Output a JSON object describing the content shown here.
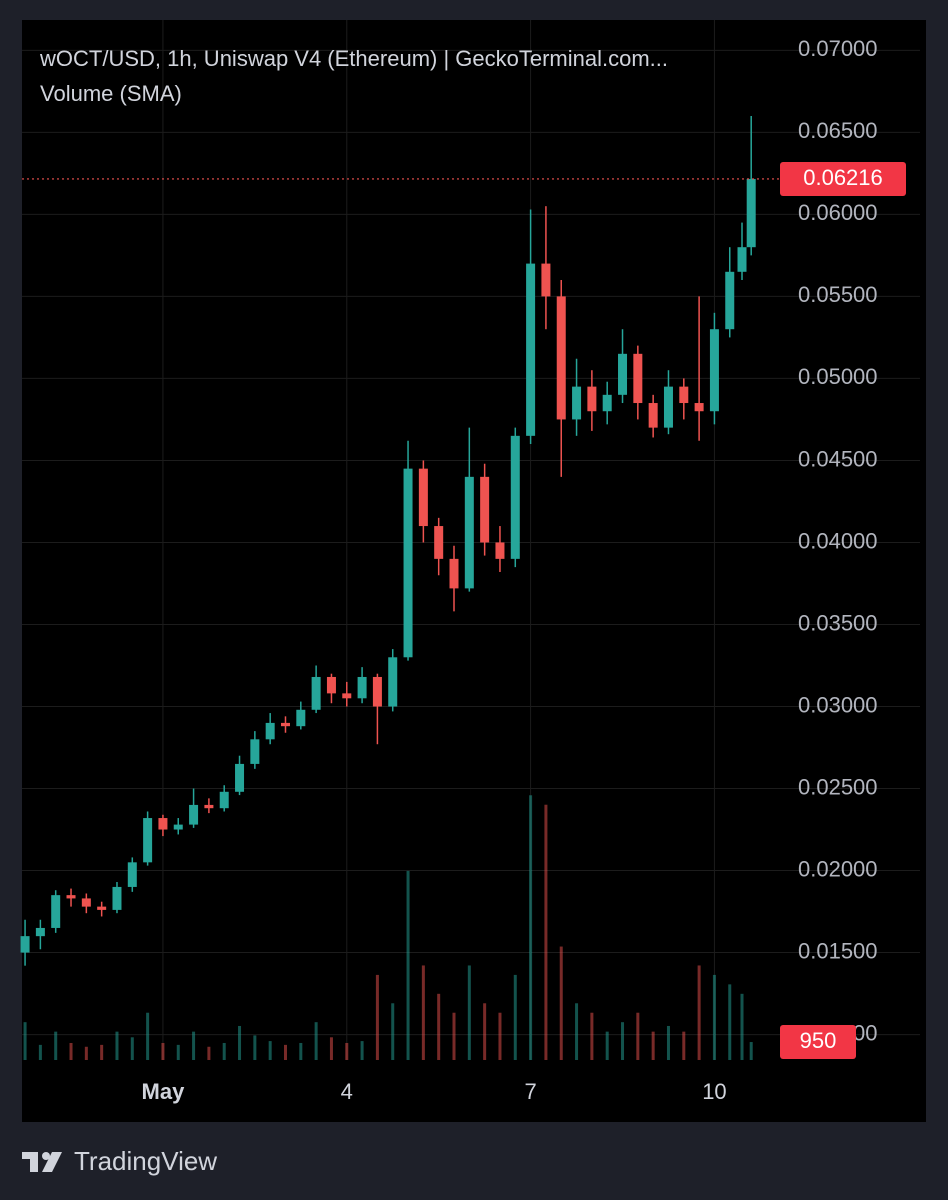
{
  "chart_data": {
    "type": "candlestick",
    "title": "wOCT/USD, 1h, Uniswap V4 (Ethereum) | GeckoTerminal.com...",
    "subtitle": "Volume (SMA)",
    "up_color": "#26a69a",
    "down_color": "#ef5350",
    "grid": true,
    "xlim": [
      -2.3,
      10.07
    ],
    "xticks": [
      {
        "value": 0,
        "label": "May"
      },
      {
        "value": 3,
        "label": "4"
      },
      {
        "value": 6,
        "label": "7"
      },
      {
        "value": 9,
        "label": "10"
      }
    ],
    "ylim": [
      0.00845,
      0.07185
    ],
    "yticks": [
      {
        "value": 0.07,
        "label": "0.07000"
      },
      {
        "value": 0.065,
        "label": "0.06500"
      },
      {
        "value": 0.06,
        "label": "0.06000"
      },
      {
        "value": 0.055,
        "label": "0.05500"
      },
      {
        "value": 0.05,
        "label": "0.05000"
      },
      {
        "value": 0.045,
        "label": "0.04500"
      },
      {
        "value": 0.04,
        "label": "0.04000"
      },
      {
        "value": 0.035,
        "label": "0.03500"
      },
      {
        "value": 0.03,
        "label": "0.03000"
      },
      {
        "value": 0.025,
        "label": "0.02500"
      },
      {
        "value": 0.02,
        "label": "0.02000"
      },
      {
        "value": 0.015,
        "label": "0.01500"
      },
      {
        "value": 0.01,
        "label": "0.01000"
      }
    ],
    "y2lim": [
      0,
      55000
    ],
    "last_price": 0.06216,
    "x": [
      -2.25,
      -2,
      -1.75,
      -1.5,
      -1.25,
      -1,
      -0.75,
      -0.5,
      -0.25,
      0,
      0.25,
      0.5,
      0.75,
      1,
      1.25,
      1.5,
      1.75,
      2,
      2.25,
      2.5,
      2.75,
      3,
      3.25,
      3.5,
      3.75,
      4,
      4.25,
      4.5,
      4.75,
      5,
      5.25,
      5.5,
      5.75,
      6,
      6.25,
      6.5,
      6.75,
      7,
      7.25,
      7.5,
      7.75,
      8,
      8.25,
      8.5,
      8.75,
      9,
      9.25,
      9.45,
      9.6
    ],
    "open": [
      0.015,
      0.016,
      0.0165,
      0.0185,
      0.0183,
      0.0178,
      0.0176,
      0.019,
      0.0205,
      0.0232,
      0.0225,
      0.0228,
      0.024,
      0.0238,
      0.0248,
      0.0265,
      0.028,
      0.029,
      0.0288,
      0.0298,
      0.0318,
      0.0308,
      0.0305,
      0.0318,
      0.03,
      0.033,
      0.0445,
      0.041,
      0.039,
      0.0372,
      0.044,
      0.04,
      0.039,
      0.0465,
      0.057,
      0.055,
      0.0475,
      0.0495,
      0.048,
      0.049,
      0.0515,
      0.0485,
      0.047,
      0.0495,
      0.0485,
      0.048,
      0.053,
      0.0565,
      0.058
    ],
    "high": [
      0.017,
      0.017,
      0.0188,
      0.0189,
      0.0186,
      0.0181,
      0.0193,
      0.0208,
      0.0236,
      0.0234,
      0.0232,
      0.025,
      0.0244,
      0.0252,
      0.027,
      0.0285,
      0.0296,
      0.0294,
      0.0303,
      0.0325,
      0.032,
      0.0315,
      0.0324,
      0.032,
      0.0335,
      0.0462,
      0.045,
      0.0415,
      0.0398,
      0.047,
      0.0448,
      0.041,
      0.047,
      0.0603,
      0.0605,
      0.056,
      0.0512,
      0.0505,
      0.0498,
      0.053,
      0.052,
      0.049,
      0.0505,
      0.05,
      0.055,
      0.054,
      0.058,
      0.0595,
      0.066
    ],
    "low": [
      0.0142,
      0.0152,
      0.0162,
      0.0178,
      0.0174,
      0.0172,
      0.0174,
      0.0187,
      0.0203,
      0.0221,
      0.0222,
      0.0226,
      0.0235,
      0.0236,
      0.0246,
      0.0262,
      0.0277,
      0.0284,
      0.0286,
      0.0296,
      0.0302,
      0.03,
      0.0302,
      0.0277,
      0.0297,
      0.0328,
      0.04,
      0.038,
      0.0358,
      0.037,
      0.0392,
      0.0382,
      0.0385,
      0.046,
      0.053,
      0.044,
      0.0465,
      0.0468,
      0.0472,
      0.0485,
      0.0475,
      0.0464,
      0.0466,
      0.0475,
      0.0462,
      0.0472,
      0.0525,
      0.056,
      0.0575
    ],
    "close": [
      0.016,
      0.0165,
      0.0185,
      0.0183,
      0.0178,
      0.0176,
      0.019,
      0.0205,
      0.0232,
      0.0225,
      0.0228,
      0.024,
      0.0238,
      0.0248,
      0.0265,
      0.028,
      0.029,
      0.0288,
      0.0298,
      0.0318,
      0.0308,
      0.0305,
      0.0318,
      0.03,
      0.033,
      0.0445,
      0.041,
      0.039,
      0.0372,
      0.044,
      0.04,
      0.039,
      0.0465,
      0.057,
      0.055,
      0.0475,
      0.0495,
      0.048,
      0.049,
      0.0515,
      0.0485,
      0.047,
      0.0495,
      0.0485,
      0.048,
      0.053,
      0.0565,
      0.058,
      0.06216
    ],
    "volume": [
      2000,
      800,
      1500,
      900,
      700,
      800,
      1500,
      1200,
      2500,
      900,
      800,
      1500,
      700,
      900,
      1800,
      1300,
      1000,
      800,
      900,
      2000,
      1200,
      900,
      1000,
      4500,
      3000,
      10000,
      5000,
      3500,
      2500,
      5000,
      3000,
      2500,
      4500,
      14000,
      13500,
      6000,
      3000,
      2500,
      1500,
      2000,
      2500,
      1500,
      1800,
      1500,
      5000,
      4500,
      4000,
      3500,
      950
    ],
    "footer": "TradingView"
  }
}
